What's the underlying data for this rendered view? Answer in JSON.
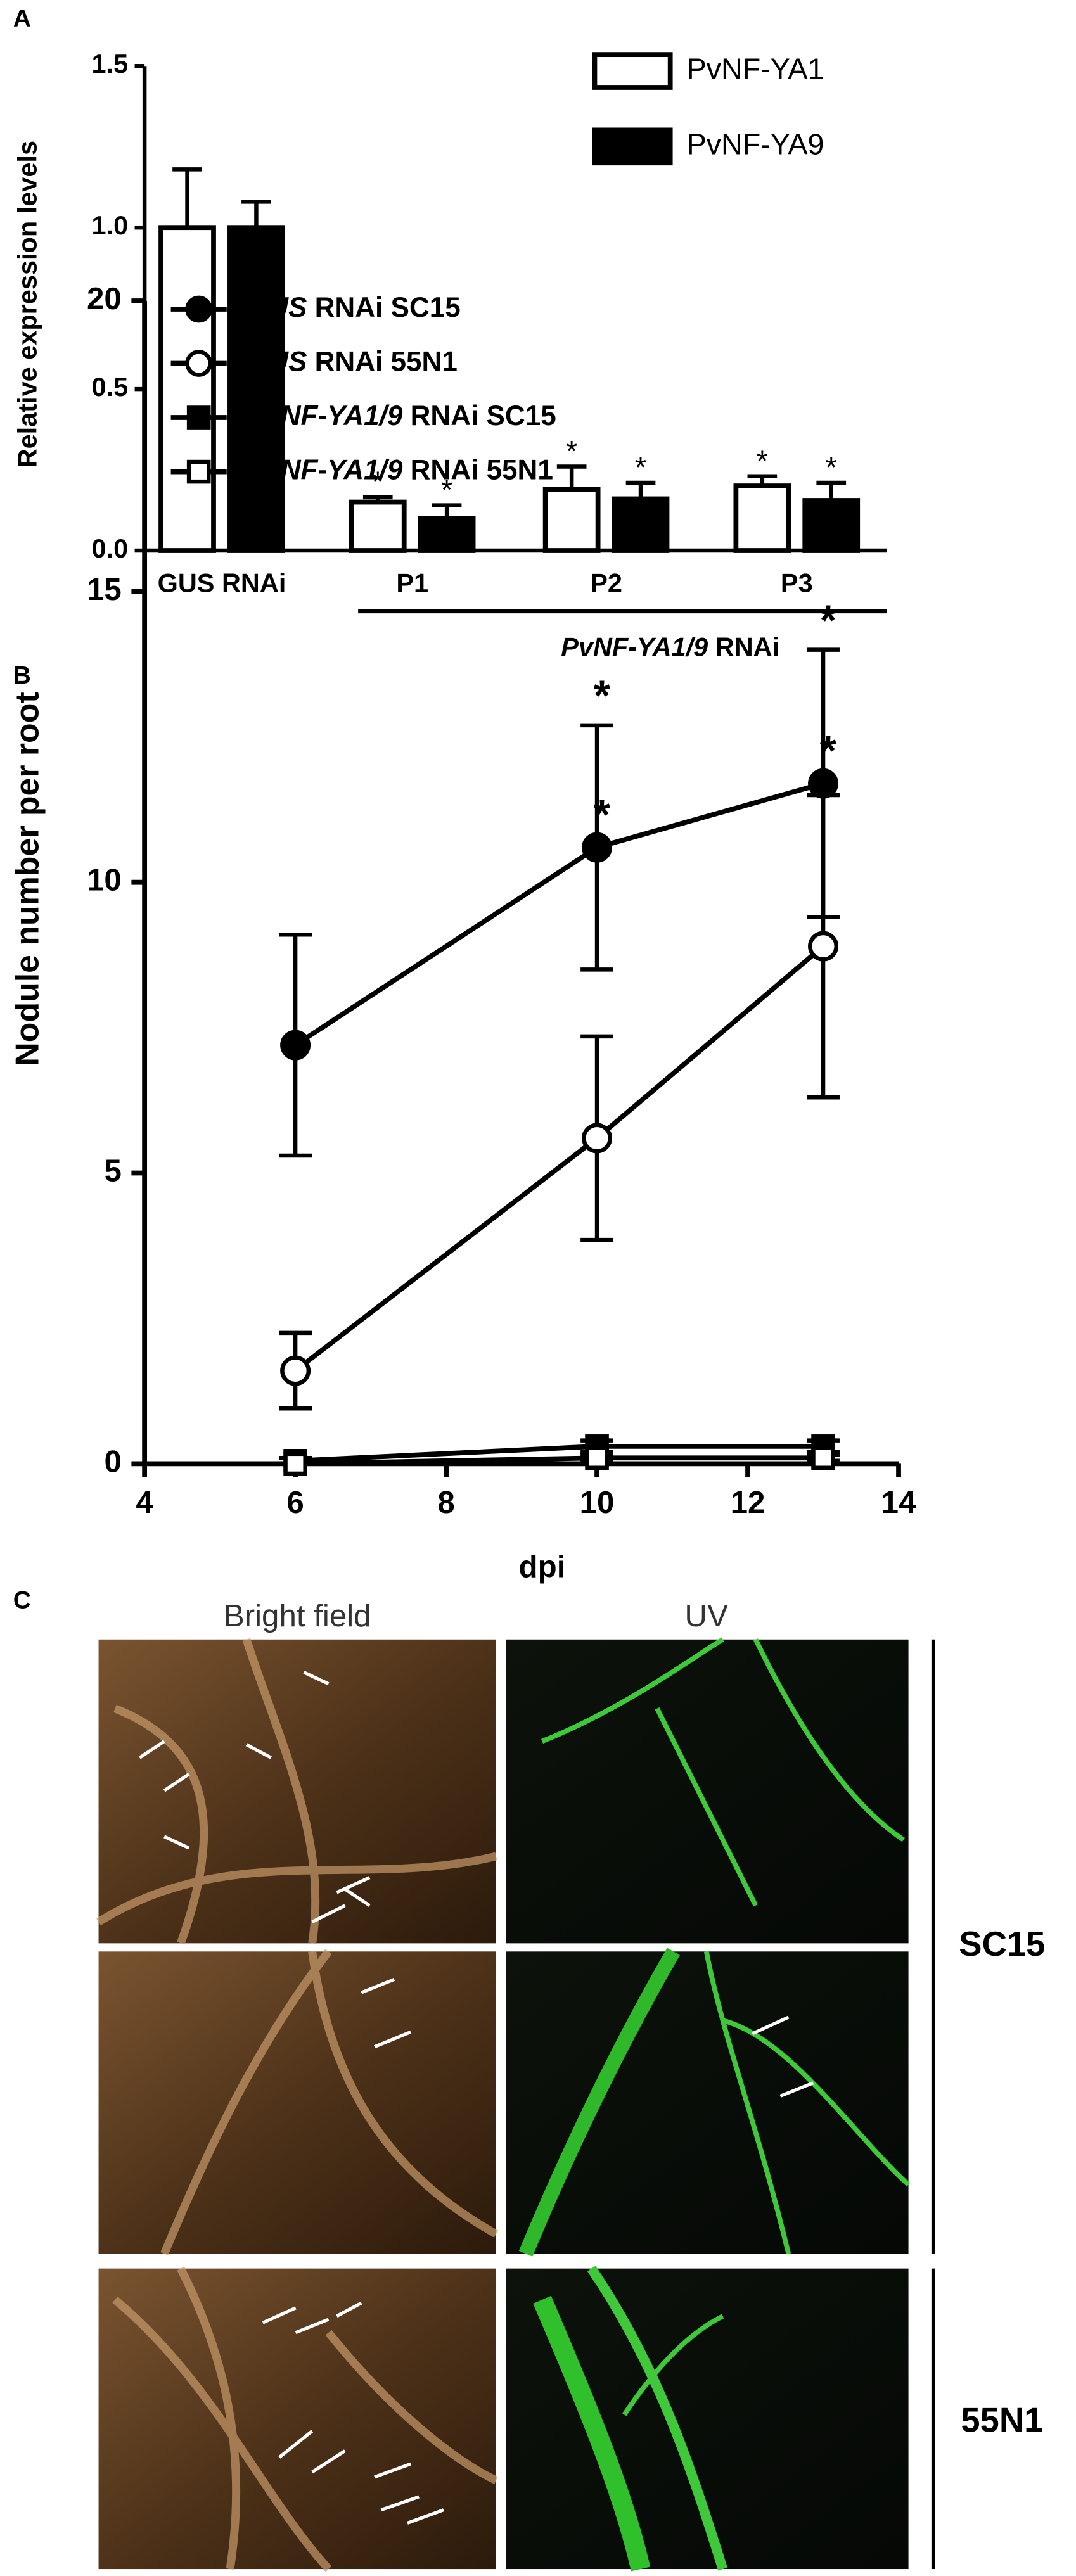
{
  "chart_data": [
    {
      "type": "bar",
      "panel": "A",
      "ylabel": "Relative expression levels",
      "ylim": [
        0,
        1.5
      ],
      "yticks": [
        {
          "value": 0,
          "label": "0.0"
        },
        0.5,
        {
          "value": 1,
          "label": "1.0"
        },
        1.5
      ],
      "categories": [
        "GUS RNAi",
        "P1",
        "P2",
        "P3"
      ],
      "group_label": "PvNF-YA1/9 RNAi",
      "series": [
        {
          "name": "PvNF-YA1",
          "color": "#ffffff",
          "values": [
            1.0,
            0.15,
            0.19,
            0.2
          ],
          "errors": [
            0.18,
            0.015,
            0.07,
            0.03
          ],
          "annotations": [
            null,
            "*",
            "*",
            "*"
          ]
        },
        {
          "name": "PvNF-YA9",
          "color": "#000000",
          "values": [
            1.0,
            0.1,
            0.16,
            0.155
          ],
          "errors": [
            0.08,
            0.04,
            0.05,
            0.055
          ],
          "annotations": [
            null,
            "*",
            "*",
            "*"
          ]
        }
      ]
    },
    {
      "type": "line",
      "panel": "B",
      "xlabel": "dpi",
      "ylabel": "Nodule number per root",
      "xlim": [
        4,
        14
      ],
      "xticks": [
        4,
        6,
        8,
        10,
        12,
        14
      ],
      "ylim": [
        0,
        20
      ],
      "yticks": [
        0,
        5,
        10,
        15,
        20
      ],
      "x": [
        6,
        10,
        13
      ],
      "series": [
        {
          "name": "GUS RNAi SC15",
          "color": "#000000",
          "marker": "circle",
          "filled": true,
          "values": [
            7.2,
            10.6,
            11.7
          ],
          "errors": [
            1.9,
            2.1,
            2.3
          ],
          "annotations": [
            null,
            "*",
            "*"
          ]
        },
        {
          "name": "GUS RNAi 55N1",
          "color": "#000000",
          "marker": "circle",
          "filled": false,
          "values": [
            1.6,
            5.6,
            8.9
          ],
          "errors": [
            0.65,
            1.75,
            2.6
          ],
          "annotations": [
            null,
            "*",
            "*"
          ]
        },
        {
          "name": "PvNF-YA1/9 RNAi SC15",
          "color": "#000000",
          "marker": "square",
          "filled": true,
          "values": [
            0.05,
            0.3,
            0.3
          ],
          "errors": [
            0.05,
            0.1,
            0.1
          ],
          "annotations": [
            null,
            null,
            null
          ]
        },
        {
          "name": "PvNF-YA1/9 RNAi 55N1",
          "color": "#000000",
          "marker": "square",
          "filled": false,
          "values": [
            0.0,
            0.1,
            0.1
          ],
          "errors": [
            0.0,
            0.05,
            0.05
          ],
          "annotations": [
            null,
            null,
            null
          ]
        }
      ]
    }
  ],
  "panel_c": {
    "label": "C",
    "columns": [
      "Bright field",
      "UV"
    ],
    "rows": [
      "SC15",
      "55N1"
    ]
  }
}
